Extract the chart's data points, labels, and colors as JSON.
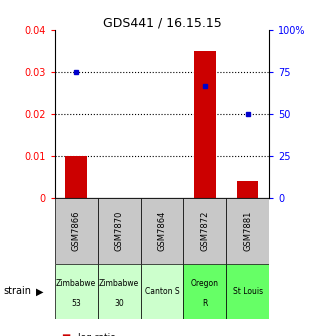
{
  "title": "GDS441 / 16.15.15",
  "samples": [
    "GSM7866",
    "GSM7870",
    "GSM7864",
    "GSM7872",
    "GSM7881"
  ],
  "strains_line1": [
    "Zimbabwe",
    "Zimbabwe",
    "Canton S",
    "Oregon",
    "St Louis"
  ],
  "strains_line2": [
    "53",
    "30",
    "",
    "R",
    ""
  ],
  "strain_colors": [
    "#ccffcc",
    "#ccffcc",
    "#ccffcc",
    "#66ff66",
    "#66ff66"
  ],
  "log_ratios": [
    0.01,
    0.0,
    0.0,
    0.035,
    0.004
  ],
  "percentile_ranks": [
    75,
    0,
    0,
    67,
    50
  ],
  "ylim_left": [
    0,
    0.04
  ],
  "ylim_right": [
    0,
    100
  ],
  "yticks_left": [
    0,
    0.01,
    0.02,
    0.03,
    0.04
  ],
  "yticks_right": [
    0,
    25,
    50,
    75,
    100
  ],
  "bar_color": "#cc0000",
  "dot_color": "#0000cc",
  "bg_color": "#ffffff",
  "sample_bg": "#c8c8c8"
}
